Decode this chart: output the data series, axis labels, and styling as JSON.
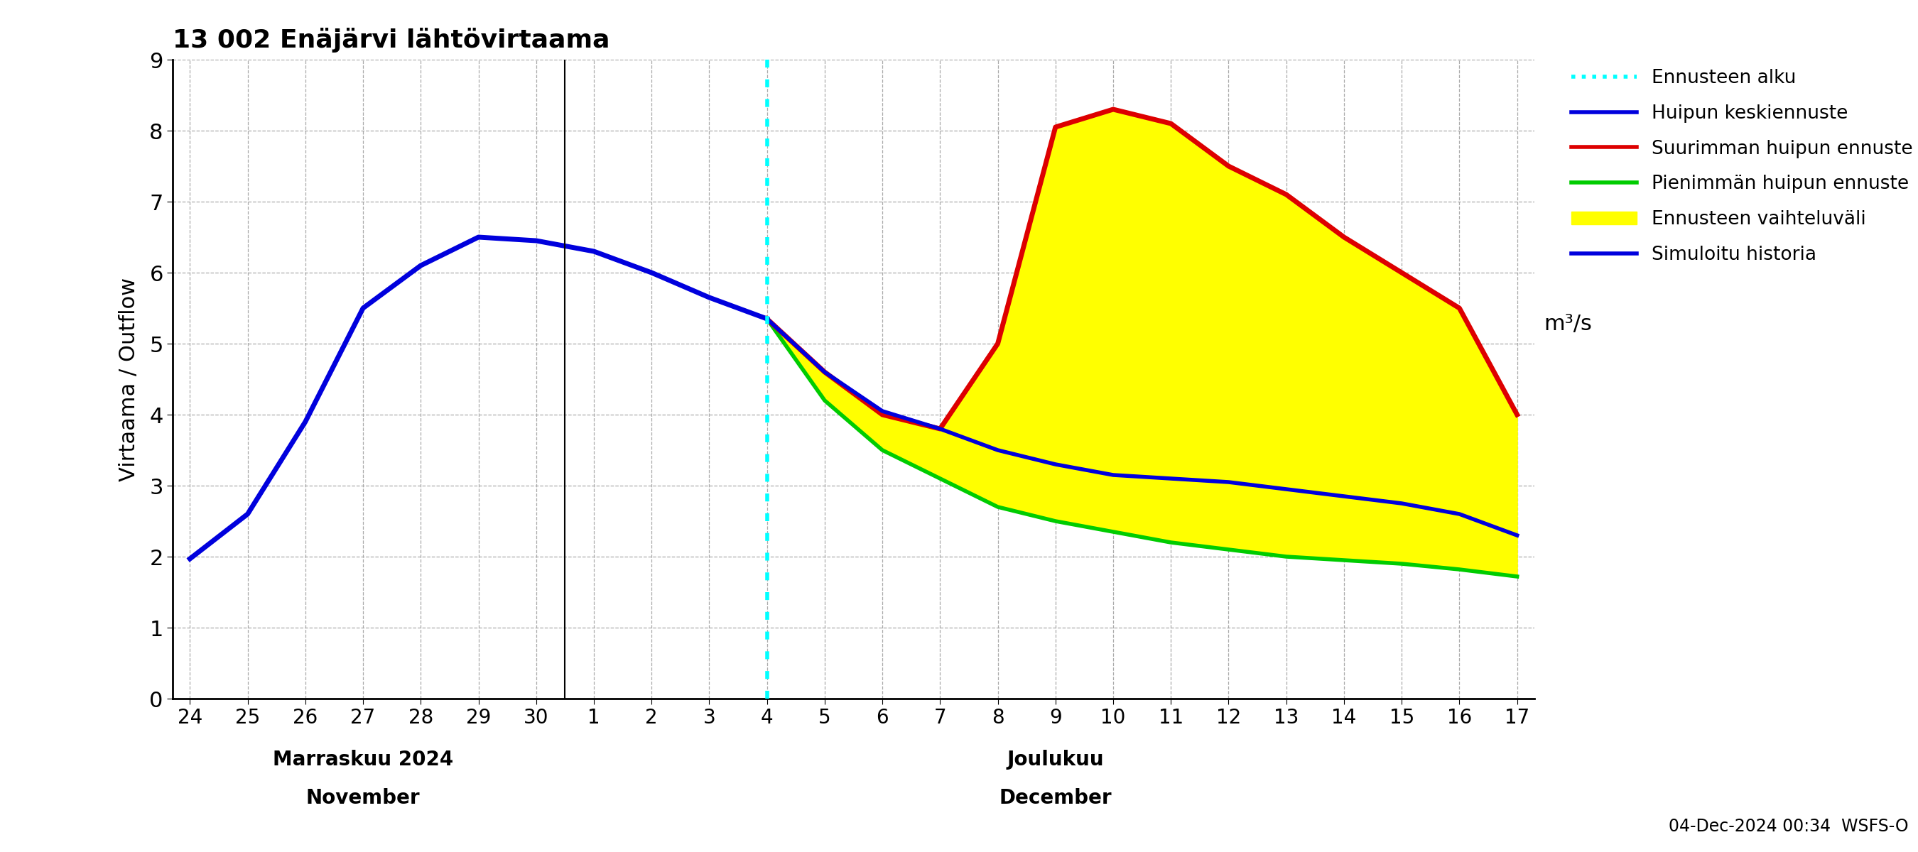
{
  "title": "13 002 Enäjärvi lähtövirtaama",
  "ylabel_left": "Virtaama / Outflow",
  "ylabel_right": "m³/s",
  "footnote": "04-Dec-2024 00:34  WSFS-O",
  "ylim": [
    0,
    9
  ],
  "yticks": [
    0,
    1,
    2,
    3,
    4,
    5,
    6,
    7,
    8,
    9
  ],
  "legend_labels": [
    "Ennusteen alku",
    "Huipun keskiennuste",
    "Suurimman huipun ennuste",
    "Pienimmän huipun ennuste",
    "Ennusteen vaihteluväli",
    "Simuloitu historia"
  ],
  "history_x": [
    0,
    1,
    2,
    3,
    4,
    5,
    6,
    7,
    8,
    9,
    10
  ],
  "history_y": [
    1.97,
    2.6,
    3.9,
    5.5,
    6.1,
    6.5,
    6.45,
    6.3,
    6.0,
    5.65,
    5.35
  ],
  "mean_x": [
    10,
    11,
    12,
    13,
    14,
    15,
    16,
    17,
    18,
    19,
    20,
    21,
    22,
    23
  ],
  "mean_y": [
    5.35,
    4.6,
    4.05,
    3.8,
    3.5,
    3.3,
    3.15,
    3.1,
    3.05,
    2.95,
    2.85,
    2.75,
    2.6,
    2.3
  ],
  "max_x": [
    10,
    11,
    12,
    13,
    14,
    15,
    16,
    17,
    18,
    19,
    20,
    21,
    22,
    23
  ],
  "max_y": [
    5.35,
    4.6,
    4.0,
    3.8,
    5.0,
    8.05,
    8.3,
    8.1,
    7.5,
    7.1,
    6.5,
    6.0,
    5.5,
    4.0
  ],
  "min_x": [
    10,
    11,
    12,
    13,
    14,
    15,
    16,
    17,
    18,
    19,
    20,
    21,
    22,
    23
  ],
  "min_y": [
    5.35,
    4.2,
    3.5,
    3.1,
    2.7,
    2.5,
    2.35,
    2.2,
    2.1,
    2.0,
    1.95,
    1.9,
    1.82,
    1.72
  ],
  "xtick_positions": [
    0,
    1,
    2,
    3,
    4,
    5,
    6,
    7,
    8,
    9,
    10,
    11,
    12,
    13,
    14,
    15,
    16,
    17,
    18,
    19,
    20,
    21,
    22,
    23
  ],
  "xtick_labels": [
    "24",
    "25",
    "26",
    "27",
    "28",
    "29",
    "30",
    "1",
    "2",
    "3",
    "4",
    "5",
    "6",
    "7",
    "8",
    "9",
    "10",
    "11",
    "12",
    "13",
    "14",
    "15",
    "16",
    "17"
  ],
  "forecast_start_idx": 10,
  "month_sep_idx": 6.5,
  "history_color": "#0000dd",
  "mean_color": "#0000dd",
  "max_color": "#dd0000",
  "min_color": "#00cc00",
  "fill_color": "#ffff00",
  "cyan_color": "#00ffff",
  "grid_color": "#aaaaaa"
}
